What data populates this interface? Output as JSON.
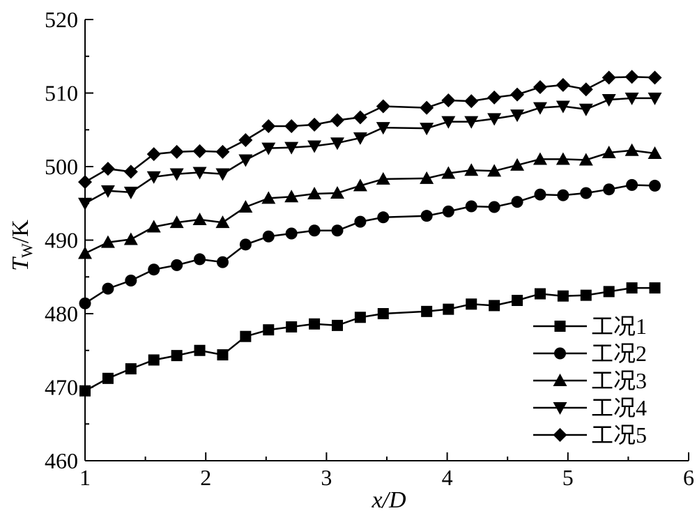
{
  "chart_data": {
    "type": "line",
    "title": "",
    "xlabel": "x/D",
    "ylabel": "T_W/K",
    "xlim": [
      1,
      6
    ],
    "ylim": [
      460,
      520
    ],
    "x_ticks": [
      1,
      2,
      3,
      4,
      5,
      6
    ],
    "y_ticks": [
      460,
      470,
      480,
      490,
      500,
      510,
      520
    ],
    "grid": false,
    "legend_position": "bottom-right",
    "x": [
      1.0,
      1.19,
      1.38,
      1.57,
      1.76,
      1.95,
      2.14,
      2.33,
      2.52,
      2.71,
      2.9,
      3.09,
      3.28,
      3.47,
      3.83,
      4.01,
      4.2,
      4.39,
      4.58,
      4.77,
      4.96,
      5.15,
      5.34,
      5.53,
      5.72
    ],
    "series": [
      {
        "name": "工况1",
        "marker": "square",
        "values": [
          469.5,
          471.2,
          472.5,
          473.7,
          474.3,
          475.0,
          474.4,
          476.9,
          477.8,
          478.2,
          478.6,
          478.4,
          479.5,
          480.0,
          480.3,
          480.6,
          481.3,
          481.1,
          481.8,
          482.7,
          482.4,
          482.5,
          483.0,
          483.5,
          483.5
        ]
      },
      {
        "name": "工况2",
        "marker": "circle",
        "values": [
          481.4,
          483.4,
          484.5,
          486.0,
          486.6,
          487.4,
          487.0,
          489.4,
          490.5,
          490.9,
          491.3,
          491.3,
          492.5,
          493.1,
          493.3,
          493.9,
          494.6,
          494.5,
          495.2,
          496.2,
          496.1,
          496.4,
          496.9,
          497.5,
          497.4
        ]
      },
      {
        "name": "工况3",
        "marker": "triangle-up",
        "values": [
          488.2,
          489.7,
          490.1,
          491.8,
          492.4,
          492.8,
          492.4,
          494.5,
          495.7,
          495.9,
          496.3,
          496.4,
          497.4,
          498.3,
          498.4,
          499.1,
          499.5,
          499.4,
          500.2,
          501.0,
          501.0,
          500.9,
          501.9,
          502.2,
          501.8
        ]
      },
      {
        "name": "工况4",
        "marker": "triangle-down",
        "values": [
          495.0,
          496.7,
          496.5,
          498.6,
          499.0,
          499.2,
          499.0,
          500.9,
          502.5,
          502.6,
          502.8,
          503.2,
          503.9,
          505.3,
          505.2,
          506.1,
          506.1,
          506.5,
          507.0,
          508.0,
          508.2,
          507.8,
          509.1,
          509.3,
          509.3
        ]
      },
      {
        "name": "工况5",
        "marker": "diamond",
        "values": [
          497.9,
          499.7,
          499.3,
          501.7,
          502.0,
          502.1,
          502.0,
          503.6,
          505.5,
          505.5,
          505.7,
          506.3,
          506.7,
          508.2,
          508.0,
          509.0,
          508.9,
          509.4,
          509.8,
          510.8,
          511.1,
          510.5,
          512.1,
          512.2,
          512.1
        ]
      }
    ]
  }
}
